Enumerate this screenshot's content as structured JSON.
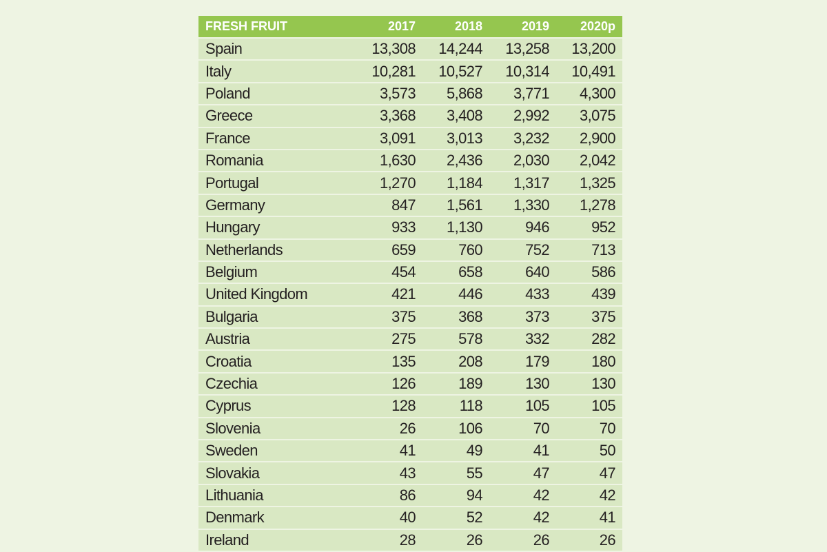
{
  "table": {
    "headers": [
      "FRESH FRUIT",
      "2017",
      "2018",
      "2019",
      "2020p"
    ],
    "rows": [
      [
        "Spain",
        "13,308",
        "14,244",
        "13,258",
        "13,200"
      ],
      [
        "Italy",
        "10,281",
        "10,527",
        "10,314",
        "10,491"
      ],
      [
        "Poland",
        "3,573",
        "5,868",
        "3,771",
        "4,300"
      ],
      [
        "Greece",
        "3,368",
        "3,408",
        "2,992",
        "3,075"
      ],
      [
        "France",
        "3,091",
        "3,013",
        "3,232",
        "2,900"
      ],
      [
        "Romania",
        "1,630",
        "2,436",
        "2,030",
        "2,042"
      ],
      [
        "Portugal",
        "1,270",
        "1,184",
        "1,317",
        "1,325"
      ],
      [
        "Germany",
        "847",
        "1,561",
        "1,330",
        "1,278"
      ],
      [
        "Hungary",
        "933",
        "1,130",
        "946",
        "952"
      ],
      [
        "Netherlands",
        "659",
        "760",
        "752",
        "713"
      ],
      [
        "Belgium",
        "454",
        "658",
        "640",
        "586"
      ],
      [
        "United Kingdom",
        "421",
        "446",
        "433",
        "439"
      ],
      [
        "Bulgaria",
        "375",
        "368",
        "373",
        "375"
      ],
      [
        "Austria",
        "275",
        "578",
        "332",
        "282"
      ],
      [
        "Croatia",
        "135",
        "208",
        "179",
        "180"
      ],
      [
        "Czechia",
        "126",
        "189",
        "130",
        "130"
      ],
      [
        "Cyprus",
        "128",
        "118",
        "105",
        "105"
      ],
      [
        "Slovenia",
        "26",
        "106",
        "70",
        "70"
      ],
      [
        "Sweden",
        "41",
        "49",
        "41",
        "50"
      ],
      [
        "Slovakia",
        "43",
        "55",
        "47",
        "47"
      ],
      [
        "Lithuania",
        "86",
        "94",
        "42",
        "42"
      ],
      [
        "Denmark",
        "40",
        "52",
        "42",
        "41"
      ],
      [
        "Ireland",
        "28",
        "26",
        "26",
        "26"
      ]
    ]
  },
  "colors": {
    "header": "#95c64f",
    "row": "#d9e8c3",
    "background": "#eef4e3"
  }
}
